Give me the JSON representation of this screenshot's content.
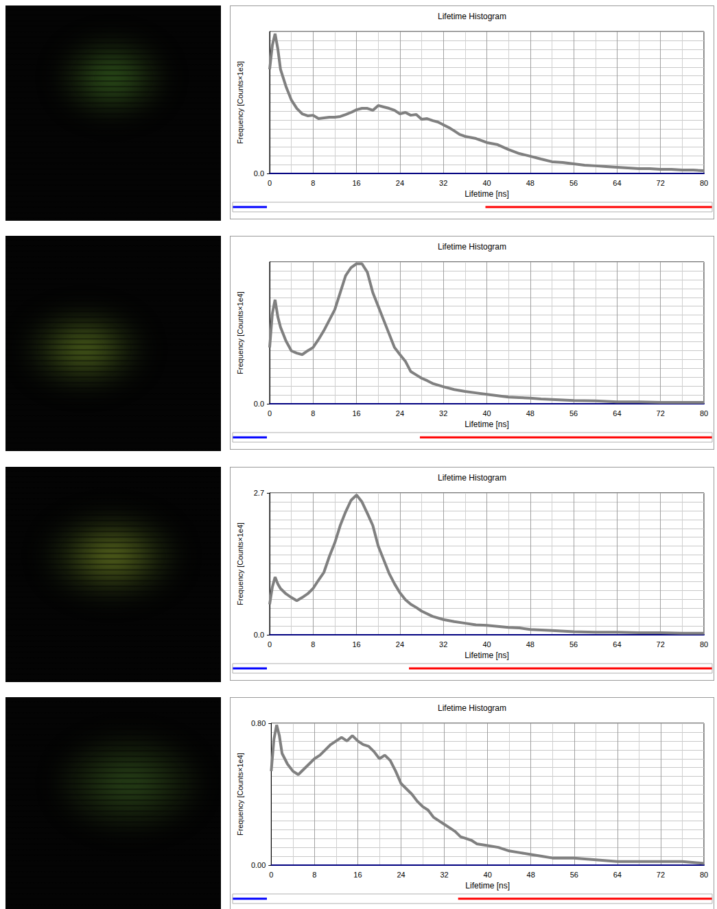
{
  "chart_data": [
    {
      "type": "line",
      "title": "Lifetime Histogram",
      "x_label": "Lifetime [ns]",
      "y_label": "Frequency [Counts×1e3]",
      "color": "#808080",
      "grid": true,
      "x": [
        0,
        0.5,
        1,
        1.5,
        2,
        3,
        4,
        5,
        6,
        7,
        8,
        9,
        10,
        11,
        12,
        13,
        14,
        15,
        16,
        17,
        18,
        19,
        20,
        21,
        22,
        23,
        24,
        25,
        26,
        27,
        28,
        29,
        30,
        31,
        32,
        33,
        34,
        35,
        36,
        38,
        40,
        42,
        44,
        46,
        48,
        50,
        52,
        54,
        56,
        58,
        60,
        62,
        64,
        66,
        68,
        70,
        72,
        74,
        76,
        78,
        80
      ],
      "values": [
        5.87,
        7.23,
        7.88,
        7.03,
        5.87,
        4.91,
        4.14,
        3.67,
        3.36,
        3.25,
        3.28,
        3.09,
        3.13,
        3.17,
        3.17,
        3.21,
        3.32,
        3.44,
        3.59,
        3.67,
        3.67,
        3.56,
        3.83,
        3.75,
        3.67,
        3.56,
        3.36,
        3.44,
        3.28,
        3.32,
        3.05,
        3.09,
        2.98,
        2.9,
        2.74,
        2.59,
        2.4,
        2.2,
        2.09,
        1.97,
        1.74,
        1.62,
        1.35,
        1.12,
        0.97,
        0.81,
        0.66,
        0.62,
        0.54,
        0.46,
        0.43,
        0.39,
        0.35,
        0.31,
        0.27,
        0.27,
        0.23,
        0.23,
        0.19,
        0.19,
        0.15
      ],
      "xlim": [
        0,
        80
      ],
      "xticks": [
        0,
        8,
        16,
        24,
        32,
        40,
        48,
        56,
        64,
        72,
        80
      ],
      "ylim": [
        0,
        8
      ],
      "yticks": [
        {
          "value": 0,
          "label": "0.0"
        }
      ],
      "colorbar_range": [
        0,
        40
      ]
    },
    {
      "type": "line",
      "title": "Lifetime Histogram",
      "x_label": "Lifetime [ns]",
      "y_label": "Frequency [Counts×1e4]",
      "color": "#808080",
      "grid": true,
      "x": [
        0,
        0.5,
        1,
        1.5,
        2,
        3,
        4,
        5,
        6,
        7,
        8,
        9,
        10,
        11,
        12,
        13,
        14,
        15,
        16,
        17,
        18,
        19,
        20,
        21,
        22,
        23,
        24,
        25,
        26,
        27,
        28,
        29,
        30,
        32,
        34,
        36,
        38,
        40,
        42,
        44,
        46,
        48,
        50,
        52,
        56,
        60,
        64,
        68,
        72,
        76,
        80
      ],
      "values": [
        1.19,
        1.91,
        2.2,
        1.84,
        1.62,
        1.33,
        1.12,
        1.07,
        1.04,
        1.12,
        1.19,
        1.36,
        1.55,
        1.77,
        1.99,
        2.35,
        2.71,
        2.88,
        2.96,
        2.96,
        2.78,
        2.35,
        2.06,
        1.77,
        1.48,
        1.19,
        1.04,
        0.9,
        0.68,
        0.61,
        0.54,
        0.49,
        0.43,
        0.36,
        0.3,
        0.26,
        0.23,
        0.2,
        0.17,
        0.14,
        0.13,
        0.12,
        0.1,
        0.09,
        0.07,
        0.06,
        0.04,
        0.04,
        0.03,
        0.03,
        0.03
      ],
      "xlim": [
        0,
        80
      ],
      "xticks": [
        0,
        8,
        16,
        24,
        32,
        40,
        48,
        56,
        64,
        72,
        80
      ],
      "ylim": [
        0,
        3
      ],
      "yticks": [
        {
          "value": 0,
          "label": "0.0"
        }
      ],
      "colorbar_range": [
        0,
        28
      ]
    },
    {
      "type": "line",
      "title": "Lifetime Histogram",
      "x_label": "Lifetime [ns]",
      "y_label": "Frequency [Counts×1e4]",
      "color": "#808080",
      "grid": true,
      "x": [
        0,
        0.5,
        1,
        1.5,
        2,
        3,
        4,
        5,
        6,
        7,
        8,
        9,
        10,
        11,
        12,
        13,
        14,
        15,
        16,
        17,
        18,
        19,
        20,
        21,
        22,
        23,
        24,
        25,
        26,
        27,
        28,
        30,
        32,
        34,
        36,
        38,
        40,
        42,
        44,
        46,
        48,
        50,
        52,
        56,
        60,
        64,
        68,
        72,
        76,
        80
      ],
      "values": [
        0.58,
        0.91,
        1.1,
        0.97,
        0.88,
        0.78,
        0.71,
        0.65,
        0.71,
        0.78,
        0.88,
        1.04,
        1.19,
        1.49,
        1.75,
        2.08,
        2.34,
        2.56,
        2.66,
        2.53,
        2.31,
        2.08,
        1.69,
        1.43,
        1.17,
        0.97,
        0.8,
        0.67,
        0.58,
        0.52,
        0.45,
        0.35,
        0.29,
        0.25,
        0.22,
        0.19,
        0.18,
        0.16,
        0.14,
        0.13,
        0.1,
        0.09,
        0.08,
        0.06,
        0.05,
        0.05,
        0.04,
        0.04,
        0.03,
        0.03
      ],
      "xlim": [
        0,
        80
      ],
      "xticks": [
        0,
        8,
        16,
        24,
        32,
        40,
        48,
        56,
        64,
        72,
        80
      ],
      "ylim": [
        0,
        2.7
      ],
      "yticks": [
        {
          "value": 0,
          "label": "0.0"
        },
        2.7
      ],
      "colorbar_range": [
        0,
        26
      ]
    },
    {
      "type": "line",
      "title": "Lifetime Histogram",
      "x_label": "Lifetime [ns]",
      "y_label": "Frequency [Counts×1e4]",
      "color": "#808080",
      "grid": true,
      "x": [
        0,
        0.5,
        1,
        1.5,
        2,
        3,
        4,
        5,
        6,
        7,
        8,
        9,
        10,
        11,
        12,
        13,
        14,
        15,
        16,
        17,
        18,
        19,
        20,
        21,
        22,
        23,
        24,
        25,
        26,
        27,
        28,
        29,
        30,
        31,
        32,
        33,
        34,
        35,
        36,
        37,
        38,
        40,
        42,
        44,
        46,
        48,
        50,
        52,
        56,
        60,
        64,
        68,
        72,
        76,
        80
      ],
      "values": [
        0.53,
        0.71,
        0.79,
        0.73,
        0.63,
        0.57,
        0.53,
        0.51,
        0.54,
        0.57,
        0.6,
        0.62,
        0.65,
        0.68,
        0.7,
        0.72,
        0.7,
        0.73,
        0.7,
        0.68,
        0.67,
        0.64,
        0.6,
        0.62,
        0.59,
        0.53,
        0.46,
        0.43,
        0.4,
        0.36,
        0.33,
        0.31,
        0.27,
        0.25,
        0.23,
        0.21,
        0.19,
        0.16,
        0.15,
        0.14,
        0.12,
        0.11,
        0.1,
        0.08,
        0.07,
        0.06,
        0.05,
        0.04,
        0.04,
        0.03,
        0.02,
        0.02,
        0.02,
        0.02,
        0.01
      ],
      "xlim": [
        0,
        80
      ],
      "xticks": [
        0,
        8,
        16,
        24,
        32,
        40,
        48,
        56,
        64,
        72,
        80
      ],
      "ylim": [
        0,
        0.8
      ],
      "yticks": [
        {
          "value": 0,
          "label": "0.00"
        },
        {
          "value": 0.8,
          "label": "0.80"
        }
      ],
      "colorbar_range": [
        0,
        35
      ]
    }
  ]
}
